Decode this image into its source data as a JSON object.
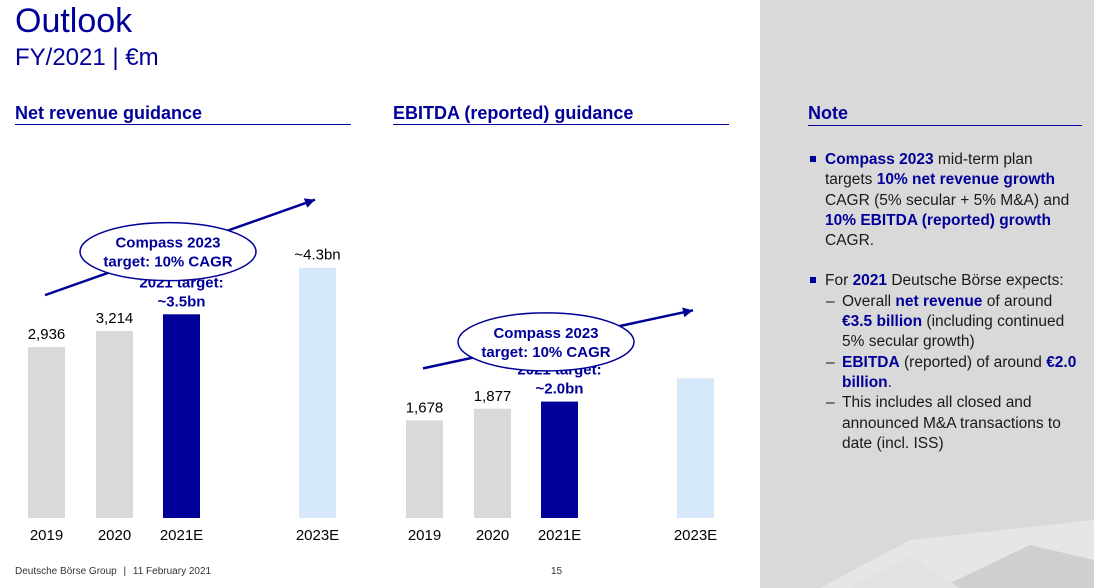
{
  "header": {
    "title": "Outlook",
    "subtitle": "FY/2021 | €m"
  },
  "footer": {
    "company": "Deutsche Börse Group",
    "separator": "|",
    "date": "11 February 2021",
    "page": "15"
  },
  "colors": {
    "accent": "#000099",
    "bar_actual": "#d9d9d9",
    "bar_target": "#000099",
    "bar_future": "#d6e9fb"
  },
  "chart_data": [
    {
      "type": "bar",
      "title": "Net revenue guidance",
      "categories": [
        "2019",
        "2020",
        "2021E",
        "2023E"
      ],
      "values": [
        2936,
        3214,
        3500,
        4300
      ],
      "data_labels": [
        "2,936",
        "3,214",
        "2021 target:\n~3.5bn",
        "~4.3bn"
      ],
      "annotation": {
        "text": "Compass 2023\ntarget: 10% CAGR"
      },
      "ylim": [
        0,
        4700
      ]
    },
    {
      "type": "bar",
      "title": "EBITDA (reported) guidance",
      "categories": [
        "2019",
        "2020",
        "2021E",
        "2023E"
      ],
      "values": [
        1678,
        1877,
        2000,
        2400
      ],
      "data_labels": [
        "1,678",
        "1,877",
        "2021 target:\n~2.0bn",
        ""
      ],
      "annotation": {
        "text": "Compass 2023\ntarget: 10% CAGR"
      },
      "ylim": [
        0,
        4700
      ]
    }
  ],
  "note": {
    "title": "Note",
    "b1": {
      "t1": "Compass 2023",
      "t2": " mid-term plan targets ",
      "t3": "10% net revenue growth",
      "t4": " CAGR (5% secular + 5% M&A) and ",
      "t5": "10% EBITDA (reported) growth",
      "t6": " CAGR."
    },
    "b2": {
      "t1": "For ",
      "t2": "2021",
      "t3": " Deutsche Börse expects:"
    },
    "s1": {
      "t1": "Overall ",
      "t2": "net revenue",
      "t3": " of around ",
      "t4": "€3.5 billion",
      "t5": " (including continued 5% secular growth)"
    },
    "s2": {
      "t1": "EBITDA",
      "t2": " (reported) of around ",
      "t3": "€2.0 billion",
      "t4": "."
    },
    "s3": {
      "t1": "This includes all closed and announced M&A transactions to date (incl. ISS)"
    },
    "dash": "–"
  }
}
